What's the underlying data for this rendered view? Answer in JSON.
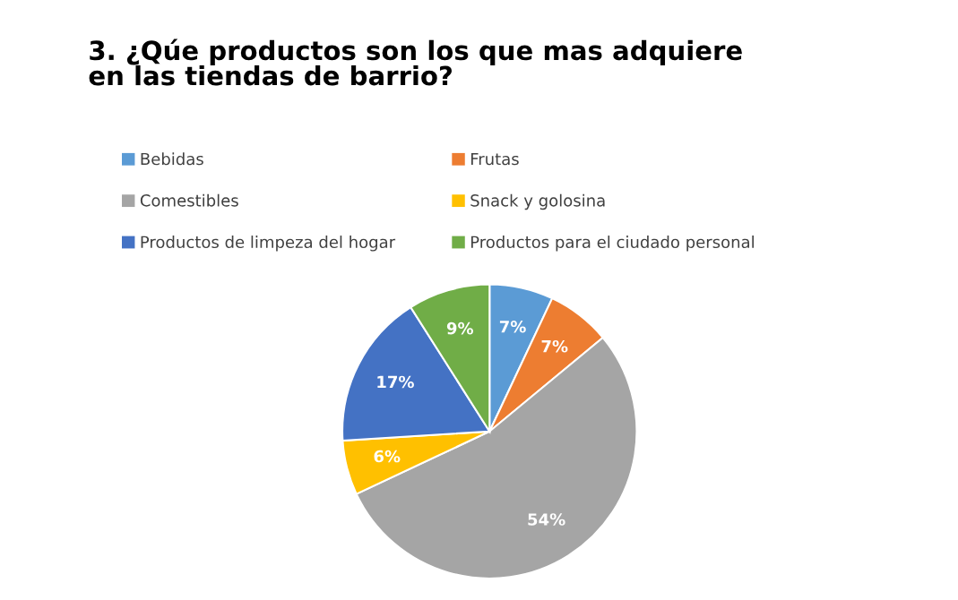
{
  "chart_data": {
    "type": "pie",
    "title": "3. ¿Qúe productos son los que mas adquiere\nen las tiendas de barrio?",
    "categories": [
      "Bebidas",
      "Frutas",
      "Comestibles",
      "Snack y golosina",
      "Productos de limpeza del hogar",
      "Productos para el ciudado personal"
    ],
    "values": [
      7,
      7,
      54,
      6,
      17,
      9
    ],
    "colors": [
      "#5b9bd5",
      "#ed7d31",
      "#a5a5a5",
      "#ffc000",
      "#4472c4",
      "#70ad47"
    ],
    "value_labels": [
      "7%",
      "7%",
      "54%",
      "6%",
      "17%",
      "9%"
    ],
    "legend": "top"
  }
}
